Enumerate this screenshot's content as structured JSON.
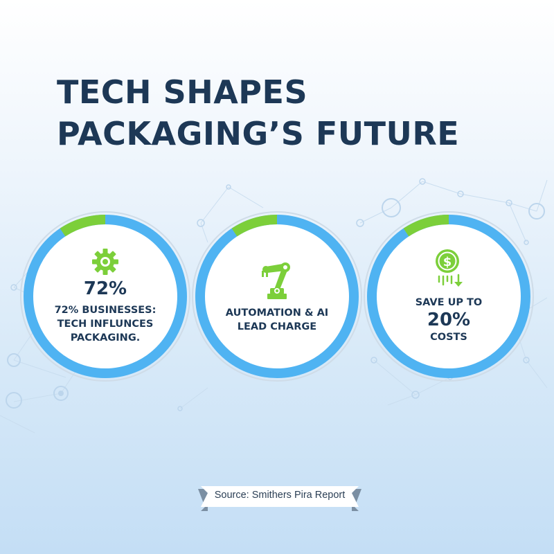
{
  "title": {
    "line1": "TECH SHAPES",
    "line2": "PACKAGING’S FUTURE"
  },
  "colors": {
    "navy": "#1d3856",
    "blue": "#4fb3f2",
    "green": "#7ccf3a",
    "bg_light": "#eef5fc"
  },
  "cards": [
    {
      "icon": "gear-icon",
      "stat": "72%",
      "text_lines": [
        "72% BUSINESSES:",
        "TECH INFLUNCES",
        "PACKAGING."
      ]
    },
    {
      "icon": "robotic-arm-icon",
      "text_lines": [
        "AUTOMATION & AI",
        "LEAD CHARGE"
      ]
    },
    {
      "icon": "dollar-coin-down-icon",
      "text_top": "SAVE UP TO",
      "stat": "20%",
      "text_bottom": "COSTS"
    }
  ],
  "source": {
    "label": "Source: Smithers Pira Report"
  }
}
